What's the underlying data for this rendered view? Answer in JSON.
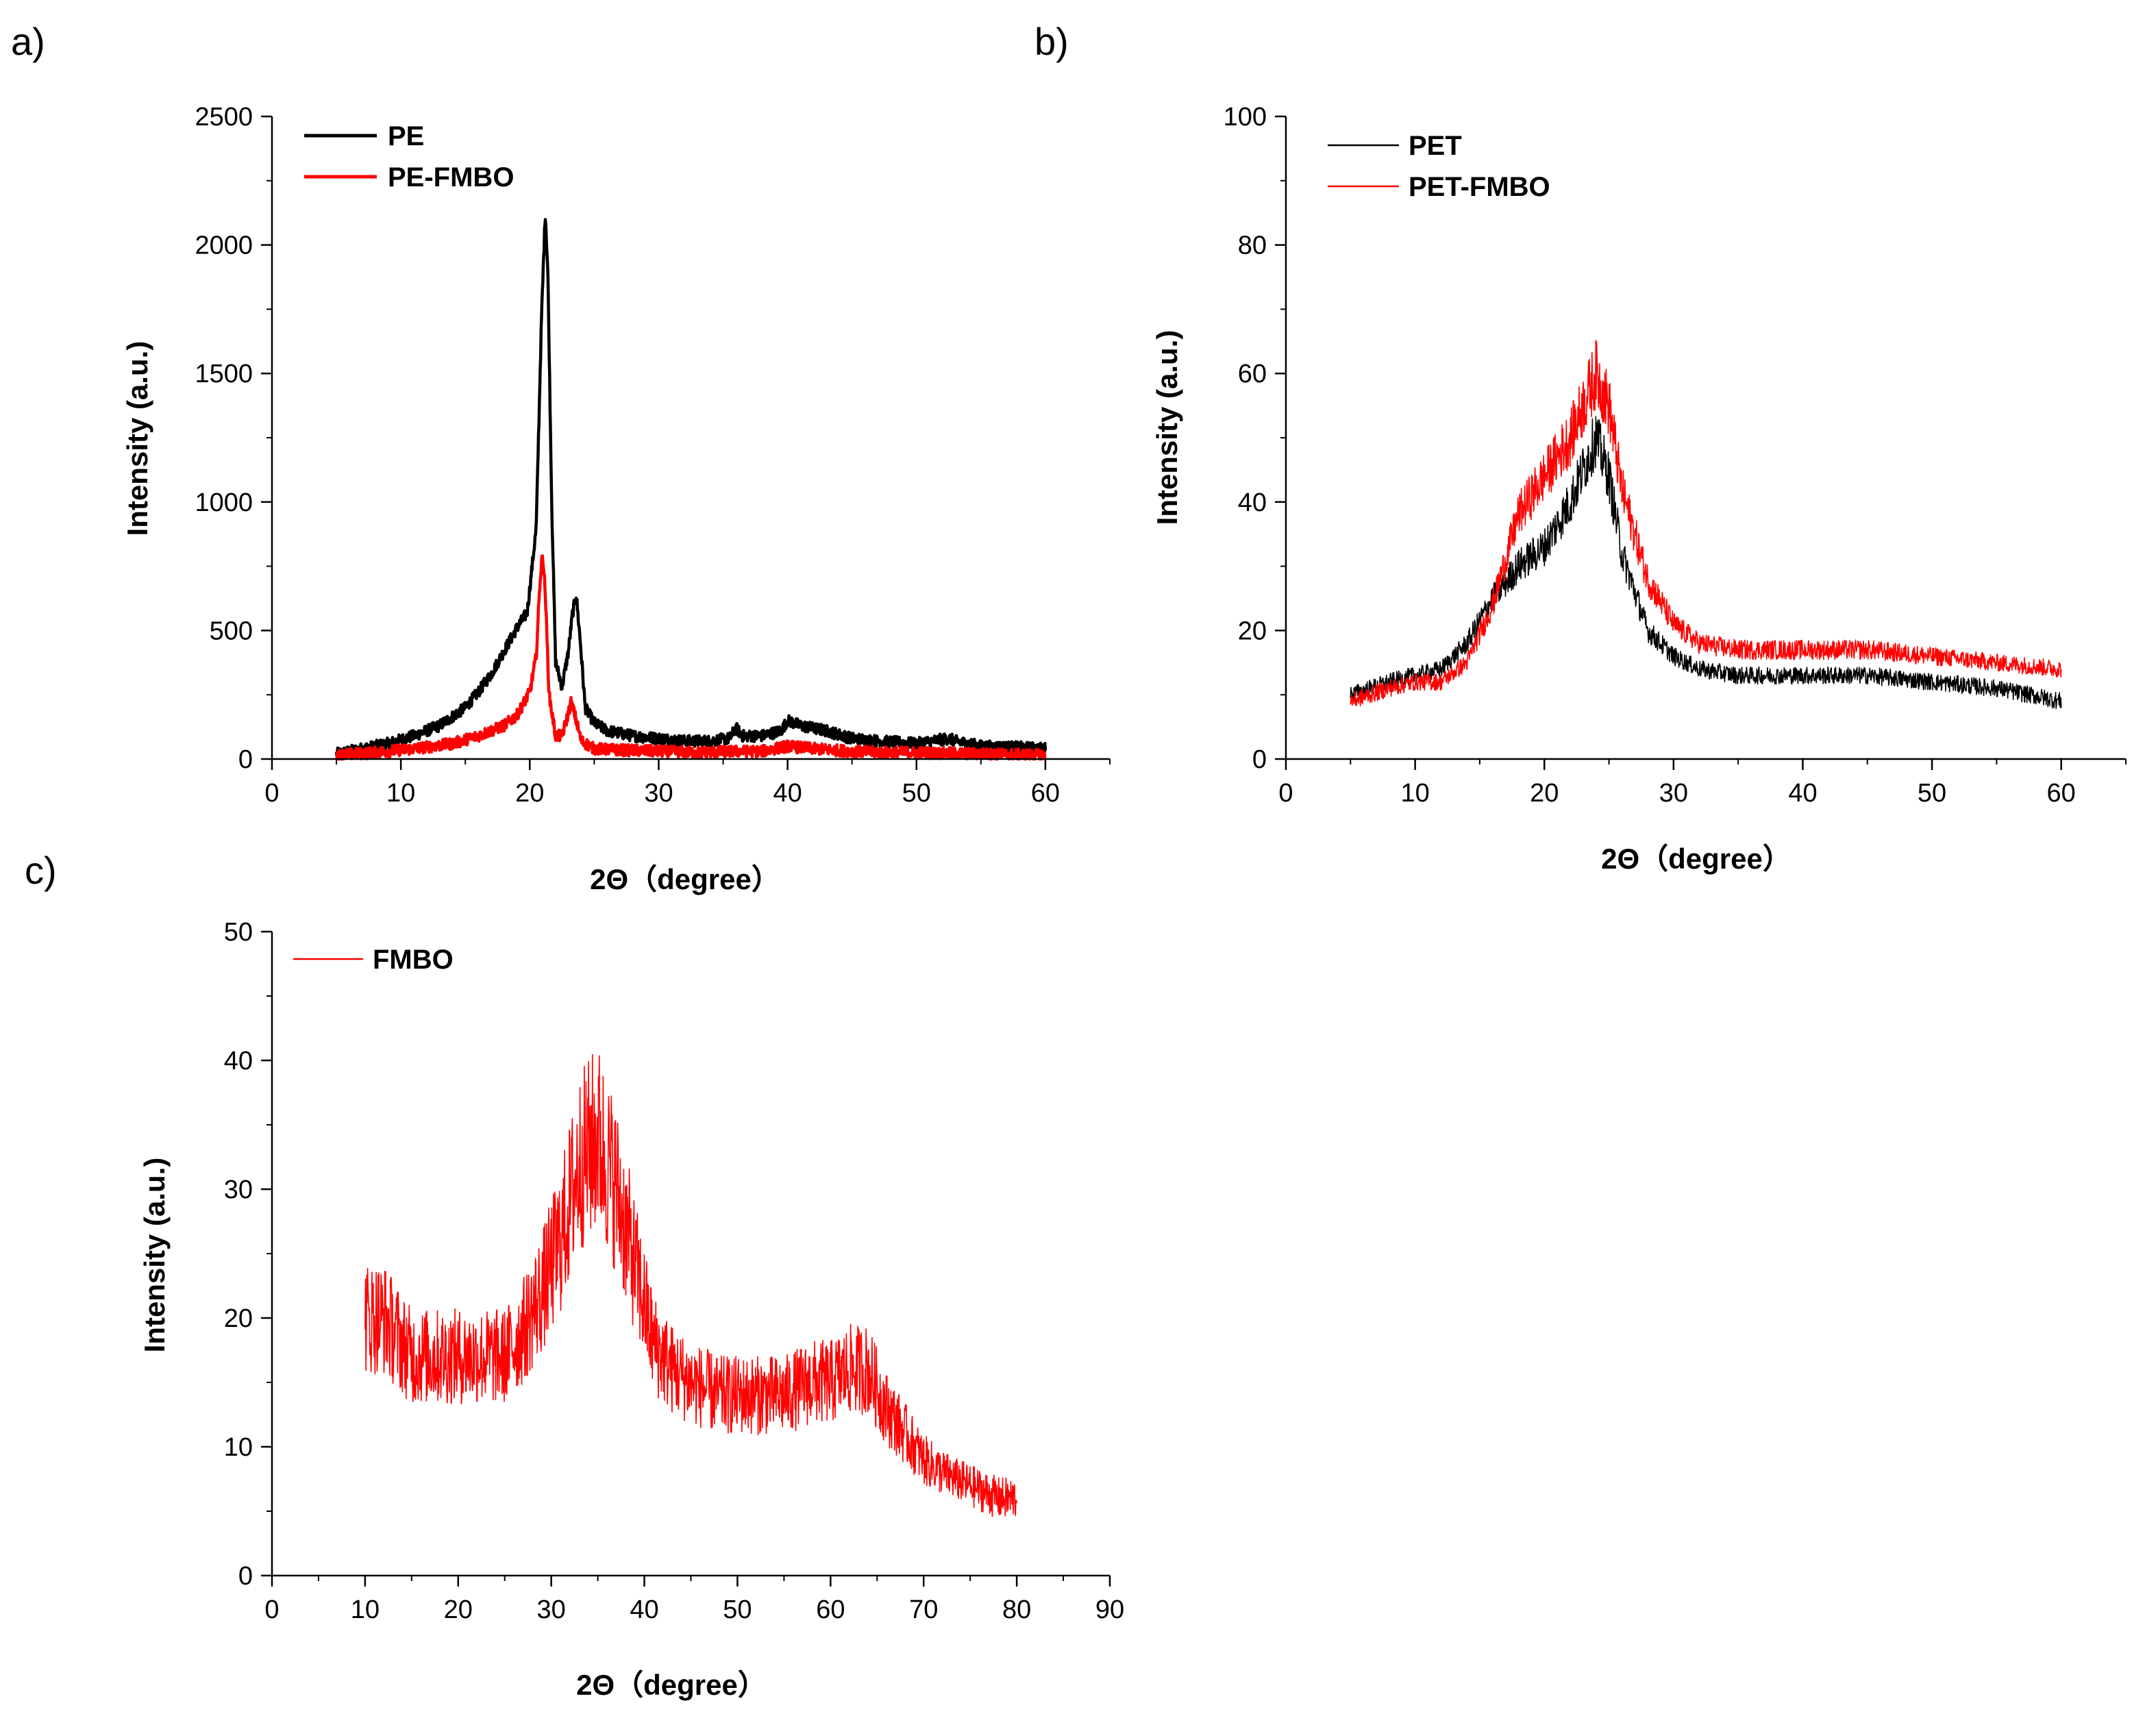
{
  "chart_data": [
    {
      "panel": "a)",
      "type": "line",
      "xlabel": "2Θ（degree）",
      "ylabel": "Intensity (a.u.)",
      "xlim": [
        0,
        65
      ],
      "ylim": [
        0,
        2500
      ],
      "xticks": [
        0,
        10,
        20,
        30,
        40,
        50,
        60
      ],
      "yticks": [
        0,
        500,
        1000,
        1500,
        2000,
        2500
      ],
      "legend_position": "top-left",
      "series": [
        {
          "name": "PE",
          "color": "#000000",
          "x": [
            5,
            7,
            9,
            11,
            13,
            15,
            16,
            17,
            18,
            19,
            19.8,
            20.5,
            20.9,
            21.2,
            21.4,
            21.7,
            22.0,
            22.5,
            23.0,
            23.3,
            23.6,
            23.9,
            24.3,
            25,
            26,
            28,
            30,
            32,
            34,
            35.5,
            36,
            36.5,
            38,
            39.5,
            40,
            41,
            43,
            45,
            47,
            50,
            52.5,
            53,
            55,
            58,
            60
          ],
          "y": [
            20,
            40,
            60,
            90,
            130,
            200,
            260,
            330,
            420,
            510,
            570,
            900,
            1700,
            2130,
            1900,
            1000,
            380,
            280,
            420,
            560,
            640,
            470,
            200,
            140,
            110,
            90,
            80,
            70,
            70,
            80,
            120,
            90,
            90,
            110,
            150,
            130,
            110,
            80,
            70,
            60,
            80,
            70,
            50,
            45,
            40
          ]
        },
        {
          "name": "PE-FMBO",
          "color": "#ff0000",
          "x": [
            5,
            8,
            11,
            14,
            16,
            18,
            19,
            20,
            20.5,
            20.8,
            21.0,
            21.2,
            21.5,
            22.0,
            22.5,
            23.0,
            23.2,
            23.5,
            24.0,
            25,
            27,
            30,
            33,
            36,
            38,
            40,
            42,
            45,
            48,
            50,
            55,
            60
          ],
          "y": [
            15,
            25,
            40,
            60,
            90,
            130,
            170,
            260,
            400,
            700,
            800,
            650,
            250,
            90,
            90,
            180,
            220,
            170,
            70,
            40,
            35,
            30,
            25,
            30,
            30,
            50,
            40,
            30,
            25,
            25,
            20,
            15
          ]
        }
      ]
    },
    {
      "panel": "b)",
      "type": "line",
      "xlabel": "2Θ（degree）",
      "ylabel": "Intensity (a.u.)",
      "xlim": [
        0,
        65
      ],
      "ylim": [
        0,
        100
      ],
      "xticks": [
        0,
        10,
        20,
        30,
        40,
        50,
        60
      ],
      "yticks": [
        0,
        20,
        40,
        60,
        80,
        100
      ],
      "legend_position": "top-left",
      "series": [
        {
          "name": "PET",
          "color": "#000000",
          "x": [
            5,
            8,
            10,
            12,
            14,
            16,
            18,
            20,
            22,
            23,
            24,
            25,
            26,
            28,
            30,
            32,
            35,
            40,
            45,
            50,
            55,
            60
          ],
          "y": [
            10,
            12,
            13,
            14,
            18,
            25,
            30,
            33,
            40,
            45,
            50,
            44,
            32,
            20,
            16,
            14,
            13,
            13,
            13,
            12,
            11,
            9
          ]
        },
        {
          "name": "PET-FMBO",
          "color": "#ff0000",
          "x": [
            5,
            8,
            10,
            12,
            14,
            16,
            18,
            20,
            22,
            23,
            24,
            25,
            26,
            28,
            30,
            32,
            35,
            40,
            45,
            50,
            55,
            60
          ],
          "y": [
            9,
            11,
            12,
            12,
            15,
            24,
            38,
            44,
            50,
            55,
            60,
            55,
            42,
            28,
            21,
            18,
            17,
            17,
            17,
            16,
            15,
            14
          ]
        }
      ]
    },
    {
      "panel": "c)",
      "type": "line",
      "xlabel": "2Θ（degree）",
      "ylabel": "Intensity (a.u.)",
      "xlim": [
        0,
        90
      ],
      "ylim": [
        0,
        50
      ],
      "xticks": [
        0,
        10,
        20,
        30,
        40,
        50,
        60,
        70,
        80,
        90
      ],
      "yticks": [
        0,
        10,
        20,
        30,
        40,
        50
      ],
      "legend_position": "top-left",
      "series": [
        {
          "name": "FMBO",
          "color": "#ff0000",
          "x": [
            10,
            12,
            15,
            18,
            20,
            22,
            25,
            27,
            29,
            31,
            33,
            35,
            37,
            39,
            41,
            43,
            45,
            48,
            50,
            55,
            58,
            60,
            62,
            64,
            66,
            68,
            70,
            72,
            75,
            78,
            80
          ],
          "y": [
            20,
            20,
            17,
            17,
            17,
            17,
            17,
            19,
            22,
            26,
            32,
            34,
            30,
            24,
            18,
            16,
            15,
            14,
            14,
            14,
            15,
            15,
            16,
            16,
            13,
            11,
            9,
            8,
            7,
            6,
            6
          ]
        }
      ]
    }
  ]
}
